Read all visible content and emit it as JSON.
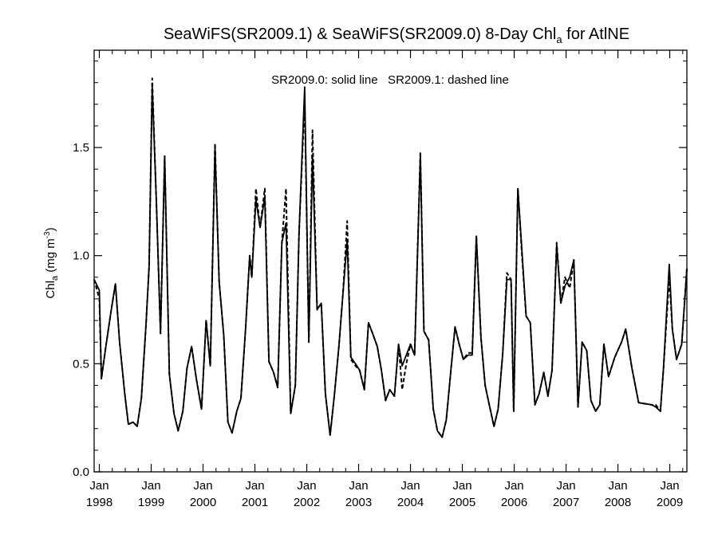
{
  "chart_data": {
    "type": "line",
    "title_prefix": "SeaWiFS(SR2009.1) & SeaWiFS(SR2009.0) 8-Day Chl",
    "title_sub": "a",
    "title_suffix": " for AtlNE",
    "annotation": "SR2009.0: solid line   SR2009.1: dashed line",
    "ylabel_prefix": "Chl",
    "ylabel_sub": "a",
    "ylabel_unit": " (mg m",
    "ylabel_exp": "-3",
    "ylabel_close": ")",
    "ylim": [
      0,
      1.95
    ],
    "xlim": [
      1997.9,
      2009.33
    ],
    "yticks": [
      {
        "v": 0.0,
        "label": "0.0"
      },
      {
        "v": 0.5,
        "label": "0.5"
      },
      {
        "v": 1.0,
        "label": "1.0"
      },
      {
        "v": 1.5,
        "label": "1.5"
      }
    ],
    "xticks": [
      {
        "v": 1998,
        "label1": "Jan",
        "label2": "1998"
      },
      {
        "v": 1999,
        "label1": "Jan",
        "label2": "1999"
      },
      {
        "v": 2000,
        "label1": "Jan",
        "label2": "2000"
      },
      {
        "v": 2001,
        "label1": "Jan",
        "label2": "2001"
      },
      {
        "v": 2002,
        "label1": "Jan",
        "label2": "2002"
      },
      {
        "v": 2003,
        "label1": "Jan",
        "label2": "2003"
      },
      {
        "v": 2004,
        "label1": "Jan",
        "label2": "2004"
      },
      {
        "v": 2005,
        "label1": "Jan",
        "label2": "2005"
      },
      {
        "v": 2006,
        "label1": "Jan",
        "label2": "2006"
      },
      {
        "v": 2007,
        "label1": "Jan",
        "label2": "2007"
      },
      {
        "v": 2008,
        "label1": "Jan",
        "label2": "2008"
      },
      {
        "v": 2009,
        "label1": "Jan",
        "label2": "2009"
      }
    ],
    "grid": false,
    "series": [
      {
        "name": "SR2009.0",
        "style": "solid",
        "points": [
          [
            1997.9,
            0.89
          ],
          [
            1998.0,
            0.84
          ],
          [
            1998.04,
            0.43
          ],
          [
            1998.12,
            0.57
          ],
          [
            1998.23,
            0.75
          ],
          [
            1998.31,
            0.87
          ],
          [
            1998.39,
            0.6
          ],
          [
            1998.49,
            0.36
          ],
          [
            1998.56,
            0.22
          ],
          [
            1998.65,
            0.23
          ],
          [
            1998.73,
            0.21
          ],
          [
            1998.81,
            0.34
          ],
          [
            1998.9,
            0.68
          ],
          [
            1998.96,
            0.95
          ],
          [
            1999.02,
            1.78
          ],
          [
            1999.1,
            1.25
          ],
          [
            1999.18,
            0.64
          ],
          [
            1999.26,
            1.46
          ],
          [
            1999.35,
            0.45
          ],
          [
            1999.44,
            0.27
          ],
          [
            1999.52,
            0.19
          ],
          [
            1999.61,
            0.28
          ],
          [
            1999.69,
            0.48
          ],
          [
            1999.78,
            0.58
          ],
          [
            1999.87,
            0.43
          ],
          [
            1999.97,
            0.29
          ],
          [
            2000.06,
            0.7
          ],
          [
            2000.14,
            0.49
          ],
          [
            2000.23,
            1.5
          ],
          [
            2000.31,
            0.88
          ],
          [
            2000.4,
            0.63
          ],
          [
            2000.48,
            0.23
          ],
          [
            2000.56,
            0.18
          ],
          [
            2000.65,
            0.28
          ],
          [
            2000.73,
            0.34
          ],
          [
            2000.82,
            0.66
          ],
          [
            2000.9,
            1.0
          ],
          [
            2000.94,
            0.9
          ],
          [
            2001.02,
            1.26
          ],
          [
            2001.1,
            1.13
          ],
          [
            2001.19,
            1.27
          ],
          [
            2001.27,
            0.51
          ],
          [
            2001.36,
            0.46
          ],
          [
            2001.44,
            0.39
          ],
          [
            2001.52,
            1.06
          ],
          [
            2001.6,
            1.15
          ],
          [
            2001.69,
            0.27
          ],
          [
            2001.78,
            0.4
          ],
          [
            2001.85,
            1.1
          ],
          [
            2001.96,
            1.78
          ],
          [
            2002.04,
            0.6
          ],
          [
            2002.11,
            1.46
          ],
          [
            2002.2,
            0.75
          ],
          [
            2002.28,
            0.78
          ],
          [
            2002.36,
            0.36
          ],
          [
            2002.45,
            0.17
          ],
          [
            2002.53,
            0.35
          ],
          [
            2002.62,
            0.58
          ],
          [
            2002.7,
            0.83
          ],
          [
            2002.78,
            1.07
          ],
          [
            2002.85,
            0.53
          ],
          [
            2002.94,
            0.5
          ],
          [
            2003.02,
            0.47
          ],
          [
            2003.11,
            0.38
          ],
          [
            2003.19,
            0.69
          ],
          [
            2003.27,
            0.64
          ],
          [
            2003.36,
            0.58
          ],
          [
            2003.44,
            0.47
          ],
          [
            2003.52,
            0.33
          ],
          [
            2003.6,
            0.38
          ],
          [
            2003.69,
            0.35
          ],
          [
            2003.77,
            0.59
          ],
          [
            2003.84,
            0.49
          ],
          [
            2003.92,
            0.54
          ],
          [
            2004.0,
            0.59
          ],
          [
            2004.08,
            0.54
          ],
          [
            2004.19,
            1.46
          ],
          [
            2004.26,
            0.65
          ],
          [
            2004.35,
            0.61
          ],
          [
            2004.44,
            0.29
          ],
          [
            2004.52,
            0.19
          ],
          [
            2004.61,
            0.16
          ],
          [
            2004.69,
            0.24
          ],
          [
            2004.78,
            0.47
          ],
          [
            2004.86,
            0.67
          ],
          [
            2004.94,
            0.59
          ],
          [
            2005.02,
            0.52
          ],
          [
            2005.11,
            0.54
          ],
          [
            2005.19,
            0.54
          ],
          [
            2005.27,
            1.09
          ],
          [
            2005.36,
            0.62
          ],
          [
            2005.44,
            0.4
          ],
          [
            2005.52,
            0.31
          ],
          [
            2005.61,
            0.21
          ],
          [
            2005.69,
            0.29
          ],
          [
            2005.78,
            0.55
          ],
          [
            2005.86,
            0.89
          ],
          [
            2005.94,
            0.89
          ],
          [
            2005.99,
            0.28
          ],
          [
            2006.07,
            1.31
          ],
          [
            2006.15,
            1.02
          ],
          [
            2006.23,
            0.72
          ],
          [
            2006.31,
            0.69
          ],
          [
            2006.4,
            0.31
          ],
          [
            2006.48,
            0.36
          ],
          [
            2006.57,
            0.46
          ],
          [
            2006.65,
            0.35
          ],
          [
            2006.73,
            0.47
          ],
          [
            2006.82,
            1.05
          ],
          [
            2006.9,
            0.78
          ],
          [
            2006.98,
            0.86
          ],
          [
            2007.07,
            0.9
          ],
          [
            2007.15,
            0.98
          ],
          [
            2007.23,
            0.3
          ],
          [
            2007.31,
            0.6
          ],
          [
            2007.4,
            0.56
          ],
          [
            2007.48,
            0.33
          ],
          [
            2007.57,
            0.28
          ],
          [
            2007.65,
            0.31
          ],
          [
            2007.73,
            0.59
          ],
          [
            2007.82,
            0.44
          ],
          [
            2007.94,
            0.53
          ],
          [
            2008.07,
            0.6
          ],
          [
            2008.15,
            0.66
          ],
          [
            2008.27,
            0.48
          ],
          [
            2008.4,
            0.32
          ],
          [
            2008.65,
            0.31
          ],
          [
            2008.73,
            0.3
          ],
          [
            2008.82,
            0.28
          ],
          [
            2008.88,
            0.48
          ],
          [
            2008.99,
            0.96
          ],
          [
            2009.05,
            0.66
          ],
          [
            2009.13,
            0.52
          ],
          [
            2009.23,
            0.59
          ],
          [
            2009.33,
            0.94
          ]
        ]
      },
      {
        "name": "SR2009.1",
        "style": "dashed",
        "points": [
          [
            1997.9,
            0.89
          ],
          [
            1998.0,
            0.8
          ],
          [
            1998.04,
            0.43
          ],
          [
            1998.12,
            0.57
          ],
          [
            1998.23,
            0.75
          ],
          [
            1998.31,
            0.87
          ],
          [
            1998.39,
            0.6
          ],
          [
            1998.49,
            0.36
          ],
          [
            1998.56,
            0.22
          ],
          [
            1998.65,
            0.23
          ],
          [
            1998.73,
            0.21
          ],
          [
            1998.81,
            0.34
          ],
          [
            1998.9,
            0.68
          ],
          [
            1998.96,
            0.95
          ],
          [
            1999.02,
            1.82
          ],
          [
            1999.1,
            1.25
          ],
          [
            1999.18,
            0.64
          ],
          [
            1999.26,
            1.46
          ],
          [
            1999.35,
            0.45
          ],
          [
            1999.44,
            0.27
          ],
          [
            1999.52,
            0.19
          ],
          [
            1999.61,
            0.28
          ],
          [
            1999.69,
            0.48
          ],
          [
            1999.78,
            0.58
          ],
          [
            1999.87,
            0.43
          ],
          [
            1999.97,
            0.29
          ],
          [
            2000.06,
            0.7
          ],
          [
            2000.14,
            0.49
          ],
          [
            2000.23,
            1.52
          ],
          [
            2000.31,
            0.88
          ],
          [
            2000.4,
            0.63
          ],
          [
            2000.48,
            0.23
          ],
          [
            2000.56,
            0.18
          ],
          [
            2000.65,
            0.28
          ],
          [
            2000.73,
            0.34
          ],
          [
            2000.82,
            0.66
          ],
          [
            2000.9,
            1.0
          ],
          [
            2000.94,
            0.9
          ],
          [
            2001.02,
            1.31
          ],
          [
            2001.1,
            1.13
          ],
          [
            2001.19,
            1.31
          ],
          [
            2001.27,
            0.51
          ],
          [
            2001.36,
            0.46
          ],
          [
            2001.44,
            0.39
          ],
          [
            2001.52,
            1.06
          ],
          [
            2001.6,
            1.31
          ],
          [
            2001.69,
            0.27
          ],
          [
            2001.78,
            0.4
          ],
          [
            2001.85,
            1.1
          ],
          [
            2001.96,
            1.72
          ],
          [
            2002.04,
            0.6
          ],
          [
            2002.11,
            1.58
          ],
          [
            2002.2,
            0.75
          ],
          [
            2002.28,
            0.78
          ],
          [
            2002.36,
            0.36
          ],
          [
            2002.45,
            0.17
          ],
          [
            2002.53,
            0.35
          ],
          [
            2002.62,
            0.58
          ],
          [
            2002.7,
            0.83
          ],
          [
            2002.78,
            1.16
          ],
          [
            2002.85,
            0.52
          ],
          [
            2002.94,
            0.49
          ],
          [
            2003.02,
            0.47
          ],
          [
            2003.11,
            0.38
          ],
          [
            2003.19,
            0.69
          ],
          [
            2003.27,
            0.64
          ],
          [
            2003.36,
            0.58
          ],
          [
            2003.44,
            0.47
          ],
          [
            2003.52,
            0.33
          ],
          [
            2003.6,
            0.38
          ],
          [
            2003.69,
            0.35
          ],
          [
            2003.77,
            0.59
          ],
          [
            2003.84,
            0.38
          ],
          [
            2003.92,
            0.5
          ],
          [
            2004.0,
            0.59
          ],
          [
            2004.08,
            0.54
          ],
          [
            2004.19,
            1.48
          ],
          [
            2004.26,
            0.65
          ],
          [
            2004.35,
            0.61
          ],
          [
            2004.44,
            0.29
          ],
          [
            2004.52,
            0.19
          ],
          [
            2004.61,
            0.16
          ],
          [
            2004.69,
            0.24
          ],
          [
            2004.78,
            0.47
          ],
          [
            2004.86,
            0.67
          ],
          [
            2004.94,
            0.59
          ],
          [
            2005.02,
            0.52
          ],
          [
            2005.11,
            0.55
          ],
          [
            2005.19,
            0.55
          ],
          [
            2005.27,
            1.09
          ],
          [
            2005.36,
            0.62
          ],
          [
            2005.44,
            0.4
          ],
          [
            2005.52,
            0.31
          ],
          [
            2005.61,
            0.21
          ],
          [
            2005.69,
            0.29
          ],
          [
            2005.78,
            0.55
          ],
          [
            2005.86,
            0.92
          ],
          [
            2005.94,
            0.89
          ],
          [
            2005.99,
            0.28
          ],
          [
            2006.07,
            1.31
          ],
          [
            2006.15,
            1.0
          ],
          [
            2006.23,
            0.72
          ],
          [
            2006.31,
            0.69
          ],
          [
            2006.4,
            0.31
          ],
          [
            2006.48,
            0.36
          ],
          [
            2006.57,
            0.46
          ],
          [
            2006.65,
            0.35
          ],
          [
            2006.73,
            0.47
          ],
          [
            2006.82,
            1.06
          ],
          [
            2006.9,
            0.78
          ],
          [
            2006.98,
            0.9
          ],
          [
            2007.07,
            0.85
          ],
          [
            2007.15,
            0.98
          ],
          [
            2007.23,
            0.3
          ],
          [
            2007.31,
            0.6
          ],
          [
            2007.4,
            0.56
          ],
          [
            2007.48,
            0.33
          ],
          [
            2007.57,
            0.28
          ],
          [
            2007.65,
            0.31
          ],
          [
            2007.73,
            0.59
          ],
          [
            2007.82,
            0.44
          ],
          [
            2007.94,
            0.53
          ],
          [
            2008.07,
            0.6
          ],
          [
            2008.15,
            0.66
          ],
          [
            2008.27,
            0.48
          ],
          [
            2008.4,
            0.32
          ],
          [
            2008.65,
            0.31
          ],
          [
            2008.73,
            0.31
          ],
          [
            2008.82,
            0.28
          ],
          [
            2008.88,
            0.48
          ],
          [
            2008.99,
            0.9
          ],
          [
            2009.05,
            0.66
          ],
          [
            2009.13,
            0.52
          ],
          [
            2009.23,
            0.59
          ],
          [
            2009.33,
            0.94
          ]
        ]
      }
    ]
  }
}
